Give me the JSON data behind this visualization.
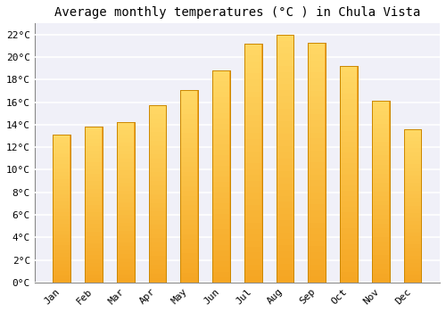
{
  "title": "Average monthly temperatures (°C ) in Chula Vista",
  "months": [
    "Jan",
    "Feb",
    "Mar",
    "Apr",
    "May",
    "Jun",
    "Jul",
    "Aug",
    "Sep",
    "Oct",
    "Nov",
    "Dec"
  ],
  "temperatures": [
    13.1,
    13.8,
    14.2,
    15.7,
    17.1,
    18.8,
    21.2,
    22.0,
    21.3,
    19.2,
    16.1,
    13.6
  ],
  "bar_color_top": "#FFD966",
  "bar_color_bottom": "#F5A623",
  "bar_edge_color": "#CC8800",
  "background_color": "#FFFFFF",
  "plot_bg_color": "#F0F0F8",
  "grid_color": "#FFFFFF",
  "title_fontsize": 10,
  "tick_fontsize": 8,
  "ylim": [
    0,
    23
  ],
  "yticks": [
    0,
    2,
    4,
    6,
    8,
    10,
    12,
    14,
    16,
    18,
    20,
    22
  ]
}
